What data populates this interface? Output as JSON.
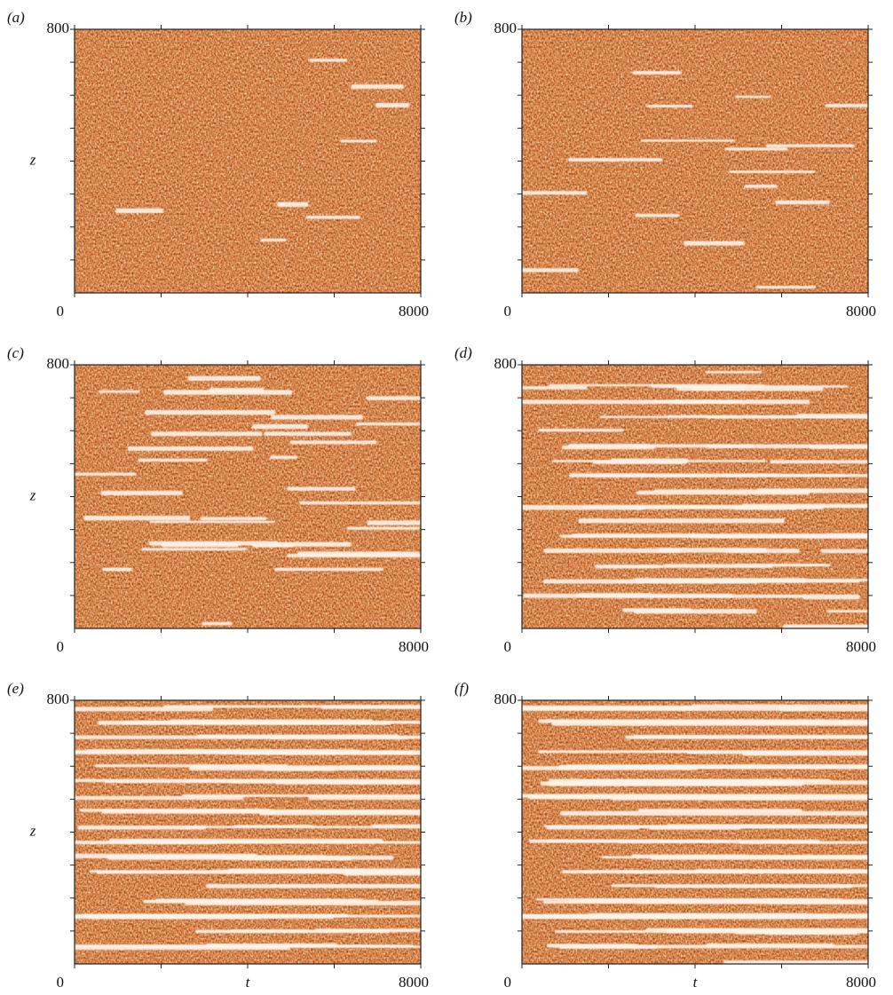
{
  "chart_data": [
    {
      "type": "heatmap",
      "panel_label": "(a)",
      "xlim": [
        0,
        8000
      ],
      "ylim": [
        0,
        800
      ],
      "xticks": [
        0,
        8000
      ],
      "yticks": [
        800
      ],
      "xminorticks": [
        2000,
        4000,
        6000
      ],
      "yminorticks": [
        100,
        200,
        300,
        400,
        500,
        600,
        700
      ],
      "ylabel": "z"
    },
    {
      "type": "heatmap",
      "panel_label": "(b)",
      "xlim": [
        0,
        8000
      ],
      "ylim": [
        0,
        800
      ],
      "xticks": [
        0,
        8000
      ],
      "yticks": [
        800
      ],
      "xminorticks": [
        2000,
        4000,
        6000
      ],
      "yminorticks": [
        100,
        200,
        300,
        400,
        500,
        600,
        700
      ]
    },
    {
      "type": "heatmap",
      "panel_label": "(c)",
      "xlim": [
        0,
        8000
      ],
      "ylim": [
        0,
        800
      ],
      "xticks": [
        0,
        8000
      ],
      "yticks": [
        800
      ],
      "xminorticks": [
        2000,
        4000,
        6000
      ],
      "yminorticks": [
        100,
        200,
        300,
        400,
        500,
        600,
        700
      ],
      "ylabel": "z"
    },
    {
      "type": "heatmap",
      "panel_label": "(d)",
      "xlim": [
        0,
        8000
      ],
      "ylim": [
        0,
        800
      ],
      "xticks": [
        0,
        8000
      ],
      "yticks": [
        800
      ],
      "xminorticks": [
        2000,
        4000,
        6000
      ],
      "yminorticks": [
        100,
        200,
        300,
        400,
        500,
        600,
        700
      ]
    },
    {
      "type": "heatmap",
      "panel_label": "(e)",
      "xlim": [
        0,
        8000
      ],
      "ylim": [
        0,
        800
      ],
      "xticks": [
        0,
        8000
      ],
      "yticks": [
        800
      ],
      "xminorticks": [
        2000,
        4000,
        6000
      ],
      "yminorticks": [
        100,
        200,
        300,
        400,
        500,
        600,
        700
      ],
      "ylabel": "z",
      "xlabel": "t"
    },
    {
      "type": "heatmap",
      "panel_label": "(f)",
      "xlim": [
        0,
        8000
      ],
      "ylim": [
        0,
        800
      ],
      "xticks": [
        0,
        8000
      ],
      "yticks": [
        800
      ],
      "xminorticks": [
        2000,
        4000,
        6000
      ],
      "yminorticks": [
        100,
        200,
        300,
        400,
        500,
        600,
        700
      ],
      "xlabel": "t"
    }
  ]
}
